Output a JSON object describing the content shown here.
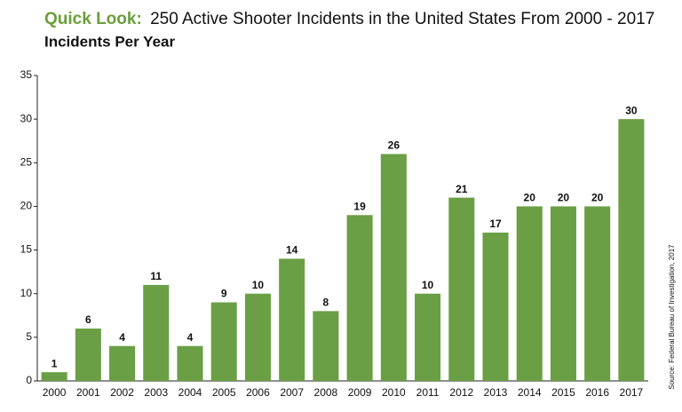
{
  "chart_data": {
    "type": "bar",
    "title_lead": "Quick Look:",
    "title": "250 Active Shooter Incidents in the United States From 2000 - 2017",
    "subtitle": "Incidents Per Year",
    "source": "Source: Federal Bureau of Investigation, 2017",
    "categories": [
      "2000",
      "2001",
      "2002",
      "2003",
      "2004",
      "2005",
      "2006",
      "2007",
      "2008",
      "2009",
      "2010",
      "2011",
      "2012",
      "2013",
      "2014",
      "2015",
      "2016",
      "2017"
    ],
    "values": [
      1,
      6,
      4,
      11,
      4,
      9,
      10,
      14,
      8,
      19,
      26,
      10,
      21,
      17,
      20,
      20,
      20,
      30
    ],
    "color": "#6a9f45",
    "title_color": "#6a9f3a",
    "ylim": [
      0,
      35
    ],
    "yticks": [
      0,
      5,
      10,
      15,
      20,
      25,
      30,
      35
    ],
    "grid": false
  }
}
